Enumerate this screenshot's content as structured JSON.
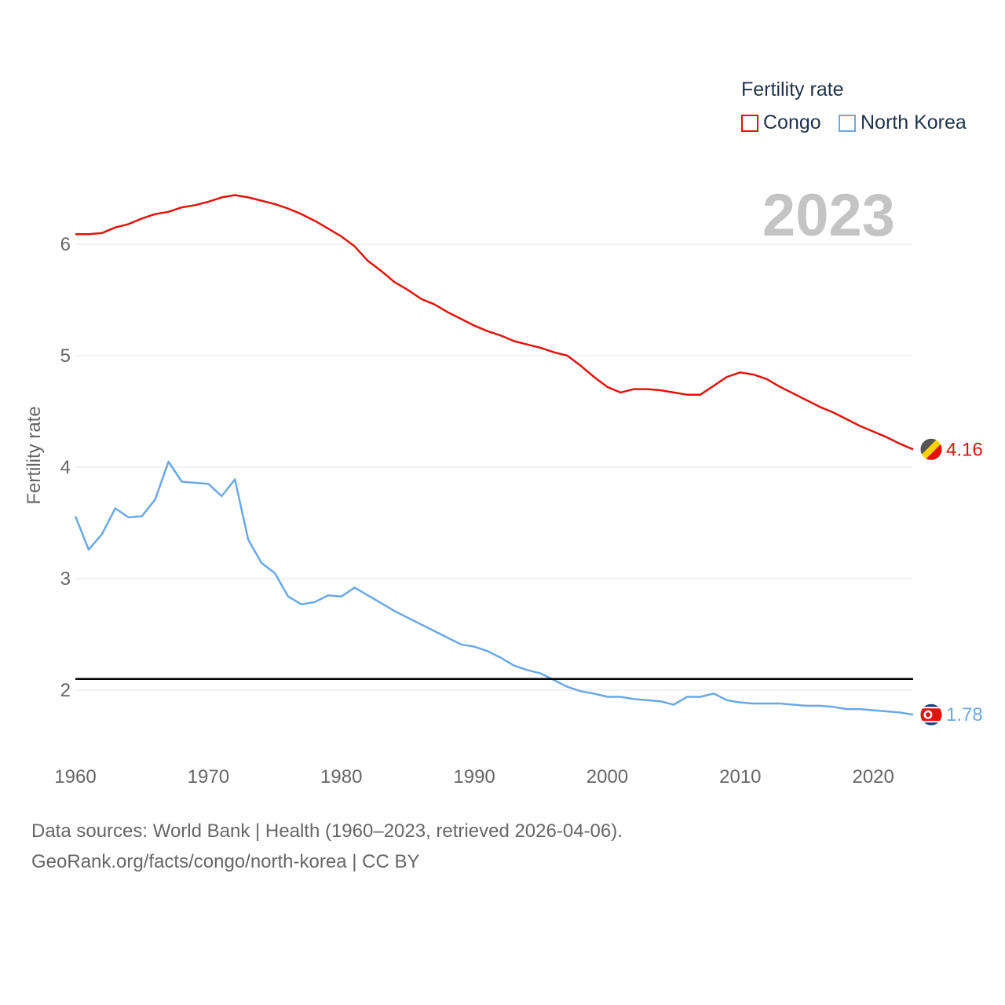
{
  "legend": {
    "title": "Fertility rate",
    "items": [
      {
        "name": "Congo",
        "color": "#e3120b"
      },
      {
        "name": "North Korea",
        "color": "#6aa8e6"
      }
    ]
  },
  "year_watermark": "2023",
  "source": {
    "line1": "Data sources: World Bank | Health (1960–2023, retrieved 2026-04-06).",
    "line2": "GeoRank.org/facts/congo/north-korea | CC BY"
  },
  "chart_data": {
    "type": "line",
    "ylabel": "Fertility rate",
    "xlabel": "",
    "xlim": [
      1960,
      2023
    ],
    "ylim": [
      1.5,
      6.7
    ],
    "x_ticks": [
      1960,
      1970,
      1980,
      1990,
      2000,
      2010,
      2020
    ],
    "y_ticks": [
      2,
      3,
      4,
      5,
      6
    ],
    "reference_line": 2.1,
    "series": [
      {
        "name": "Congo",
        "color": "#e3120b",
        "end_label": "4.16",
        "flag": "congo-flag-icon",
        "points": [
          [
            1960,
            6.09
          ],
          [
            1961,
            6.09
          ],
          [
            1962,
            6.1
          ],
          [
            1963,
            6.15
          ],
          [
            1964,
            6.18
          ],
          [
            1965,
            6.23
          ],
          [
            1966,
            6.27
          ],
          [
            1967,
            6.29
          ],
          [
            1968,
            6.33
          ],
          [
            1969,
            6.35
          ],
          [
            1970,
            6.38
          ],
          [
            1971,
            6.42
          ],
          [
            1972,
            6.44
          ],
          [
            1973,
            6.42
          ],
          [
            1974,
            6.39
          ],
          [
            1975,
            6.36
          ],
          [
            1976,
            6.32
          ],
          [
            1977,
            6.27
          ],
          [
            1978,
            6.21
          ],
          [
            1979,
            6.14
          ],
          [
            1980,
            6.07
          ],
          [
            1981,
            5.98
          ],
          [
            1982,
            5.85
          ],
          [
            1983,
            5.76
          ],
          [
            1984,
            5.66
          ],
          [
            1985,
            5.59
          ],
          [
            1986,
            5.51
          ],
          [
            1987,
            5.46
          ],
          [
            1988,
            5.39
          ],
          [
            1989,
            5.33
          ],
          [
            1990,
            5.27
          ],
          [
            1991,
            5.22
          ],
          [
            1992,
            5.18
          ],
          [
            1993,
            5.13
          ],
          [
            1994,
            5.1
          ],
          [
            1995,
            5.07
          ],
          [
            1996,
            5.03
          ],
          [
            1997,
            5.0
          ],
          [
            1998,
            4.91
          ],
          [
            1999,
            4.81
          ],
          [
            2000,
            4.72
          ],
          [
            2001,
            4.67
          ],
          [
            2002,
            4.7
          ],
          [
            2003,
            4.7
          ],
          [
            2004,
            4.69
          ],
          [
            2005,
            4.67
          ],
          [
            2006,
            4.65
          ],
          [
            2007,
            4.65
          ],
          [
            2008,
            4.73
          ],
          [
            2009,
            4.81
          ],
          [
            2010,
            4.85
          ],
          [
            2011,
            4.83
          ],
          [
            2012,
            4.79
          ],
          [
            2013,
            4.72
          ],
          [
            2014,
            4.66
          ],
          [
            2015,
            4.6
          ],
          [
            2016,
            4.54
          ],
          [
            2017,
            4.49
          ],
          [
            2018,
            4.43
          ],
          [
            2019,
            4.37
          ],
          [
            2020,
            4.32
          ],
          [
            2021,
            4.27
          ],
          [
            2022,
            4.21
          ],
          [
            2023,
            4.16
          ]
        ]
      },
      {
        "name": "North Korea",
        "color": "#6aa8e6",
        "end_label": "1.78",
        "flag": "north-korea-flag-icon",
        "points": [
          [
            1960,
            3.56
          ],
          [
            1961,
            3.26
          ],
          [
            1962,
            3.4
          ],
          [
            1963,
            3.63
          ],
          [
            1964,
            3.55
          ],
          [
            1965,
            3.56
          ],
          [
            1966,
            3.71
          ],
          [
            1967,
            4.05
          ],
          [
            1968,
            3.87
          ],
          [
            1969,
            3.86
          ],
          [
            1970,
            3.85
          ],
          [
            1971,
            3.74
          ],
          [
            1972,
            3.89
          ],
          [
            1973,
            3.35
          ],
          [
            1974,
            3.14
          ],
          [
            1975,
            3.05
          ],
          [
            1976,
            2.84
          ],
          [
            1977,
            2.77
          ],
          [
            1978,
            2.79
          ],
          [
            1979,
            2.85
          ],
          [
            1980,
            2.84
          ],
          [
            1981,
            2.92
          ],
          [
            1982,
            2.85
          ],
          [
            1983,
            2.78
          ],
          [
            1984,
            2.71
          ],
          [
            1985,
            2.65
          ],
          [
            1986,
            2.59
          ],
          [
            1987,
            2.53
          ],
          [
            1988,
            2.47
          ],
          [
            1989,
            2.41
          ],
          [
            1990,
            2.39
          ],
          [
            1991,
            2.35
          ],
          [
            1992,
            2.29
          ],
          [
            1993,
            2.22
          ],
          [
            1994,
            2.18
          ],
          [
            1995,
            2.15
          ],
          [
            1996,
            2.09
          ],
          [
            1997,
            2.03
          ],
          [
            1998,
            1.99
          ],
          [
            1999,
            1.97
          ],
          [
            2000,
            1.94
          ],
          [
            2001,
            1.94
          ],
          [
            2002,
            1.92
          ],
          [
            2003,
            1.91
          ],
          [
            2004,
            1.9
          ],
          [
            2005,
            1.87
          ],
          [
            2006,
            1.94
          ],
          [
            2007,
            1.94
          ],
          [
            2008,
            1.97
          ],
          [
            2009,
            1.91
          ],
          [
            2010,
            1.89
          ],
          [
            2011,
            1.88
          ],
          [
            2012,
            1.88
          ],
          [
            2013,
            1.88
          ],
          [
            2014,
            1.87
          ],
          [
            2015,
            1.86
          ],
          [
            2016,
            1.86
          ],
          [
            2017,
            1.85
          ],
          [
            2018,
            1.83
          ],
          [
            2019,
            1.83
          ],
          [
            2020,
            1.82
          ],
          [
            2021,
            1.81
          ],
          [
            2022,
            1.8
          ],
          [
            2023,
            1.78
          ]
        ]
      }
    ]
  }
}
